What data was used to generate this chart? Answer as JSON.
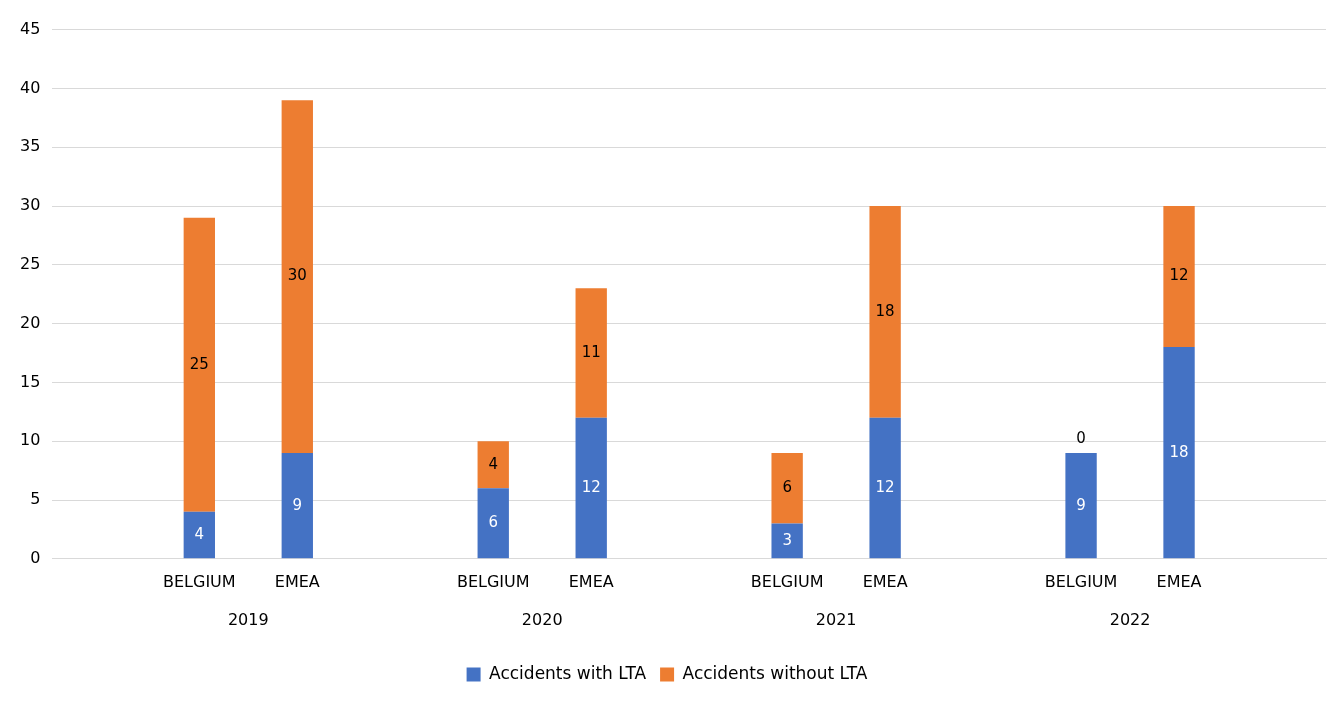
{
  "chart_data": {
    "type": "bar",
    "stacked": true,
    "categories": [
      null,
      "BELGIUM",
      "EMEA",
      null,
      "BELGIUM",
      "EMEA",
      null,
      "BELGIUM",
      "EMEA",
      null,
      "BELGIUM",
      "EMEA",
      null
    ],
    "series": [
      {
        "name": "Accidents with LTA",
        "color": "#4472c4",
        "values": [
          null,
          4,
          9,
          null,
          6,
          12,
          null,
          3,
          12,
          null,
          9,
          18,
          null
        ]
      },
      {
        "name": "Accidents without LTA",
        "color": "#ed7d31",
        "values": [
          null,
          25,
          30,
          null,
          4,
          11,
          null,
          6,
          18,
          null,
          0,
          12,
          null
        ]
      }
    ],
    "annotations": [
      "2019",
      "2020",
      "2021",
      "2022"
    ],
    "ylim": [
      0,
      45
    ],
    "yticks": [
      0,
      5,
      10,
      15,
      20,
      25,
      30,
      35,
      40,
      45
    ],
    "grid": "y",
    "legend": "bottom",
    "data_labels": true
  }
}
